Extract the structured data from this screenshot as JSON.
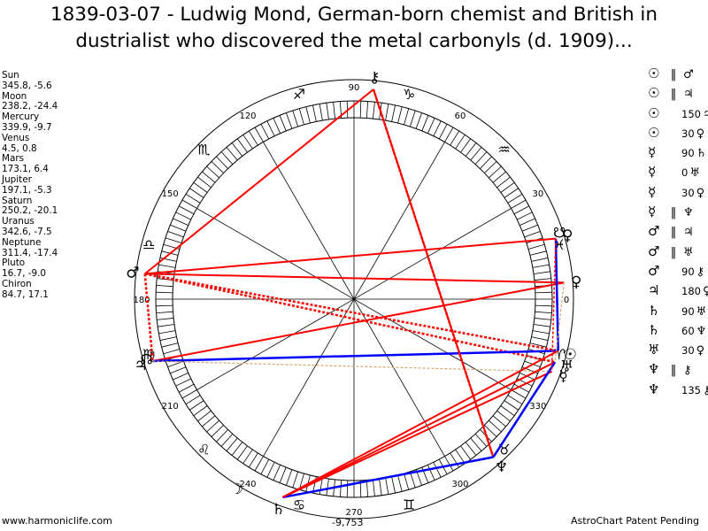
{
  "title_line1": "1839-03-07 - Ludwig Mond, German-born chemist and British in",
  "title_line2": "dustrialist who discovered the metal carbonyls (d. 1909)...",
  "planet_positions": [
    {
      "name": "Sun",
      "coords": "345.8, -5.6",
      "lon": 345.8,
      "glyph": "☉"
    },
    {
      "name": "Moon",
      "coords": "238.2, -24.4",
      "lon": 238.2,
      "glyph": "☽"
    },
    {
      "name": "Mercury",
      "coords": "339.9, -9.7",
      "lon": 339.9,
      "glyph": "☿"
    },
    {
      "name": "Venus",
      "coords": "4.5, 0.8",
      "lon": 4.5,
      "glyph": "♀"
    },
    {
      "name": "Mars",
      "coords": "173.1, 6.4",
      "lon": 173.1,
      "glyph": "♂"
    },
    {
      "name": "Jupiter",
      "coords": "197.1, -5.3",
      "lon": 197.1,
      "glyph": "♃"
    },
    {
      "name": "Saturn",
      "coords": "250.2, -20.1",
      "lon": 250.2,
      "glyph": "♄"
    },
    {
      "name": "Uranus",
      "coords": "342.6, -7.5",
      "lon": 342.6,
      "glyph": "♅"
    },
    {
      "name": "Neptune",
      "coords": "311.4, -17.4",
      "lon": 311.4,
      "glyph": "♆"
    },
    {
      "name": "Pluto",
      "coords": "16.7, -9.0",
      "lon": 16.7,
      "glyph": "♀"
    },
    {
      "name": "Chiron",
      "coords": "84.7, 17.1",
      "lon": 84.7,
      "glyph": "⚷"
    }
  ],
  "aspects": [
    {
      "p1": "☉",
      "sym": "‖",
      "orb": "",
      "p2": "♂"
    },
    {
      "p1": "☉",
      "sym": "‖",
      "orb": "",
      "p2": "♃"
    },
    {
      "p1": "☉",
      "sym": "",
      "orb": "150",
      "p2": "♃"
    },
    {
      "p1": "☉",
      "sym": "",
      "orb": "30",
      "p2": "♀"
    },
    {
      "p1": "☿",
      "sym": "",
      "orb": "90",
      "p2": "♄"
    },
    {
      "p1": "☿",
      "sym": "",
      "orb": "0",
      "p2": "♅"
    },
    {
      "p1": "☿",
      "sym": "",
      "orb": "30",
      "p2": "♀"
    },
    {
      "p1": "☿",
      "sym": "‖",
      "orb": "",
      "p2": "♆"
    },
    {
      "p1": "♂",
      "sym": "‖",
      "orb": "",
      "p2": "♃"
    },
    {
      "p1": "♂",
      "sym": "‖",
      "orb": "",
      "p2": "♅"
    },
    {
      "p1": "♂",
      "sym": "",
      "orb": "90",
      "p2": "⚷"
    },
    {
      "p1": "♃",
      "sym": "",
      "orb": "180",
      "p2": "♀"
    },
    {
      "p1": "♄",
      "sym": "",
      "orb": "90",
      "p2": "♅"
    },
    {
      "p1": "♄",
      "sym": "",
      "orb": "60",
      "p2": "♆"
    },
    {
      "p1": "♅",
      "sym": "",
      "orb": "30",
      "p2": "♀"
    },
    {
      "p1": "♆",
      "sym": "‖",
      "orb": "",
      "p2": "⚷"
    },
    {
      "p1": "♆",
      "sym": "",
      "orb": "135",
      "p2": "⚷"
    }
  ],
  "degree_labels": [
    "0",
    "30",
    "60",
    "90",
    "120",
    "150",
    "180",
    "210",
    "240",
    "270",
    "300",
    "330"
  ],
  "zodiac_signs": [
    "♓",
    "♒",
    "♑",
    "♐",
    "♏",
    "♎",
    "♍",
    "♌",
    "♋",
    "♊",
    "♉",
    "♈"
  ],
  "node_glyphs": [
    "☊",
    "☋"
  ],
  "bottom_value": "-9,753",
  "footer_left": "www.harmoniclife.com",
  "footer_right": "AstroChart Patent Pending",
  "colors": {
    "red": "#ff0000",
    "blue": "#0000ff",
    "tan": "#d2a46a"
  }
}
